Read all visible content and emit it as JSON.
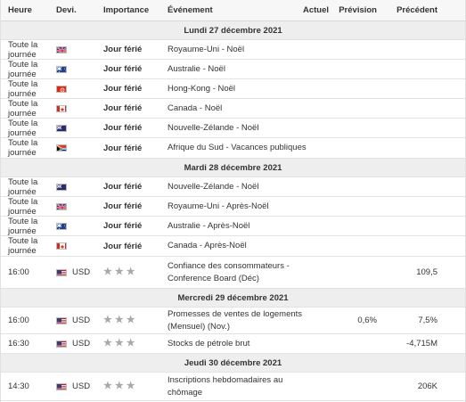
{
  "headers": {
    "time": "Heure",
    "currency": "Devi.",
    "importance": "Importance",
    "event": "Événement",
    "actual": "Actuel",
    "forecast": "Prévision",
    "previous": "Précédent"
  },
  "days": [
    {
      "label": "Lundi 27 décembre 2021"
    },
    {
      "label": "Mardi 28 décembre 2021"
    },
    {
      "label": "Mercredi 29 décembre 2021"
    },
    {
      "label": "Jeudi 30 décembre 2021"
    }
  ],
  "rows": [
    {
      "time": "Toute la journée",
      "flag": "uk-flag-icon",
      "currency": "",
      "importance": "Jour férié",
      "event": "Royaume-Uni - Noël",
      "actual": "",
      "forecast": "",
      "previous": ""
    },
    {
      "time": "Toute la journée",
      "flag": "australia-flag-icon",
      "currency": "",
      "importance": "Jour férié",
      "event": "Australie - Noël",
      "actual": "",
      "forecast": "",
      "previous": ""
    },
    {
      "time": "Toute la journée",
      "flag": "hong-kong-flag-icon",
      "currency": "",
      "importance": "Jour férié",
      "event": "Hong-Kong - Noël",
      "actual": "",
      "forecast": "",
      "previous": ""
    },
    {
      "time": "Toute la journée",
      "flag": "canada-flag-icon",
      "currency": "",
      "importance": "Jour férié",
      "event": "Canada - Noël",
      "actual": "",
      "forecast": "",
      "previous": ""
    },
    {
      "time": "Toute la journée",
      "flag": "new-zealand-flag-icon",
      "currency": "",
      "importance": "Jour férié",
      "event": "Nouvelle-Zélande - Noël",
      "actual": "",
      "forecast": "",
      "previous": ""
    },
    {
      "time": "Toute la journée",
      "flag": "south-africa-flag-icon",
      "currency": "",
      "importance": "Jour férié",
      "event": "Afrique du Sud - Vacances publiques",
      "actual": "",
      "forecast": "",
      "previous": ""
    },
    {
      "time": "Toute la journée",
      "flag": "new-zealand-flag-icon",
      "currency": "",
      "importance": "Jour férié",
      "event": "Nouvelle-Zélande - Noël",
      "actual": "",
      "forecast": "",
      "previous": ""
    },
    {
      "time": "Toute la journée",
      "flag": "uk-flag-icon",
      "currency": "",
      "importance": "Jour férié",
      "event": "Royaume-Uni - Après-Noël",
      "actual": "",
      "forecast": "",
      "previous": ""
    },
    {
      "time": "Toute la journée",
      "flag": "australia-flag-icon",
      "currency": "",
      "importance": "Jour férié",
      "event": "Australie - Après-Noël",
      "actual": "",
      "forecast": "",
      "previous": ""
    },
    {
      "time": "Toute la journée",
      "flag": "canada-flag-icon",
      "currency": "",
      "importance": "Jour férié",
      "event": "Canada - Après-Noël",
      "actual": "",
      "forecast": "",
      "previous": ""
    },
    {
      "time": "16:00",
      "flag": "usa-flag-icon",
      "currency": "USD",
      "importance": "",
      "stars": 3,
      "event": "Confiance des consommateurs - Conference Board (Déc)",
      "actual": "",
      "forecast": "",
      "previous": "109,5"
    },
    {
      "time": "16:00",
      "flag": "usa-flag-icon",
      "currency": "USD",
      "importance": "",
      "stars": 3,
      "event": "Promesses de ventes de logements (Mensuel) (Nov.)",
      "actual": "",
      "forecast": "0,6%",
      "previous": "7,5%"
    },
    {
      "time": "16:30",
      "flag": "usa-flag-icon",
      "currency": "USD",
      "importance": "",
      "stars": 3,
      "event": "Stocks de pétrole brut",
      "actual": "",
      "forecast": "",
      "previous": "-4,715M"
    },
    {
      "time": "14:30",
      "flag": "usa-flag-icon",
      "currency": "USD",
      "importance": "",
      "stars": 3,
      "event": "Inscriptions hebdomadaires au chômage",
      "actual": "",
      "forecast": "",
      "previous": "206K"
    }
  ]
}
